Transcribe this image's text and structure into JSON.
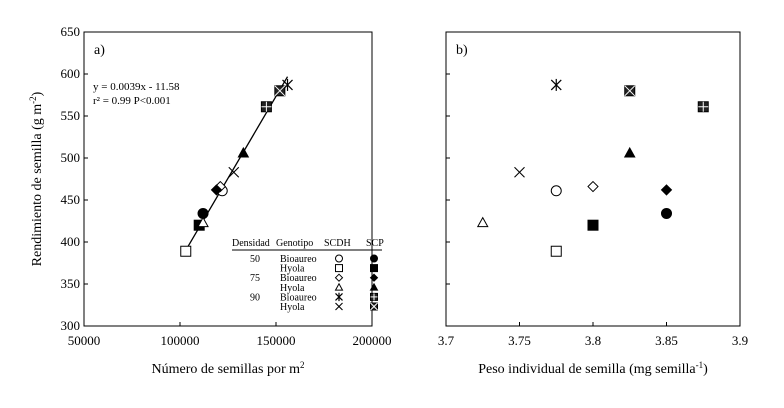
{
  "chart_data": [
    {
      "type": "scatter",
      "panel_label": "a)",
      "xlabel": "Número de semillas por m",
      "xlabel_sup": "2",
      "ylabel": "Rendimiento de semilla (g m",
      "ylabel_sup": "-2",
      "ylabel_end": ")",
      "xlim": [
        50000,
        200000
      ],
      "ylim": [
        300,
        650
      ],
      "xticks": [
        50000,
        100000,
        150000,
        200000
      ],
      "xtick_labels": [
        "50000",
        "100000",
        "150000",
        "200000"
      ],
      "yticks": [
        300,
        350,
        400,
        450,
        500,
        550,
        600,
        650
      ],
      "ytick_labels": [
        "300",
        "350",
        "400",
        "450",
        "500",
        "550",
        "600",
        "650"
      ],
      "grid": false,
      "series": [
        {
          "marker": "open-circle",
          "points": [
            [
              122000,
              461
            ]
          ]
        },
        {
          "marker": "filled-circle",
          "points": [
            [
              112000,
              434
            ]
          ]
        },
        {
          "marker": "open-square",
          "points": [
            [
              103000,
              389
            ]
          ]
        },
        {
          "marker": "filled-square",
          "points": [
            [
              110000,
              420
            ]
          ]
        },
        {
          "marker": "open-diamond",
          "points": [
            [
              121000,
              466
            ]
          ]
        },
        {
          "marker": "filled-diamond",
          "points": [
            [
              119000,
              462
            ]
          ]
        },
        {
          "marker": "open-triangle",
          "points": [
            [
              112000,
              423
            ]
          ]
        },
        {
          "marker": "filled-triangle",
          "points": [
            [
              133000,
              506
            ]
          ]
        },
        {
          "marker": "asterisk",
          "points": [
            [
              156000,
              587
            ]
          ]
        },
        {
          "marker": "hatched-square",
          "points": [
            [
              145000,
              561
            ]
          ]
        },
        {
          "marker": "cross",
          "points": [
            [
              128000,
              483
            ]
          ]
        },
        {
          "marker": "crossed-square",
          "points": [
            [
              152000,
              580
            ]
          ]
        }
      ],
      "regression": {
        "slope": 0.0039,
        "intercept": -11.58,
        "x_range": [
          103000,
          156000
        ],
        "equation_text": "y = 0.0039x - 11.58",
        "r2_text": "r² = 0.99  P<0.001"
      },
      "legend": {
        "position": "bottom-right",
        "headers": [
          "Densidad",
          "Genotipo",
          "SCDH",
          "SCP"
        ],
        "rows": [
          {
            "densidad": "50",
            "genotipo": "Bioaureo",
            "scdh": "open-circle",
            "scp": "filled-circle"
          },
          {
            "densidad": "",
            "genotipo": "Hyola",
            "scdh": "open-square",
            "scp": "filled-square"
          },
          {
            "densidad": "75",
            "genotipo": "Bioaureo",
            "scdh": "open-diamond",
            "scp": "filled-diamond"
          },
          {
            "densidad": "",
            "genotipo": "Hyola",
            "scdh": "open-triangle",
            "scp": "filled-triangle"
          },
          {
            "densidad": "90",
            "genotipo": "Bioaureo",
            "scdh": "asterisk",
            "scp": "hatched-square"
          },
          {
            "densidad": "",
            "genotipo": "Hyola",
            "scdh": "cross",
            "scp": "crossed-square"
          }
        ]
      }
    },
    {
      "type": "scatter",
      "panel_label": "b)",
      "xlabel": "Peso individual de semilla (mg semilla",
      "xlabel_sup": "-1",
      "xlabel_end": ")",
      "xlim": [
        3.7,
        3.9
      ],
      "ylim": [
        300,
        650
      ],
      "xticks": [
        3.7,
        3.75,
        3.8,
        3.85,
        3.9
      ],
      "xtick_labels": [
        "3.7",
        "3.75",
        "3.8",
        "3.85",
        "3.9"
      ],
      "yticks": [
        300,
        350,
        400,
        450,
        500,
        550,
        600,
        650
      ],
      "grid": false,
      "series": [
        {
          "marker": "open-circle",
          "points": [
            [
              3.775,
              461
            ]
          ]
        },
        {
          "marker": "filled-circle",
          "points": [
            [
              3.85,
              434
            ]
          ]
        },
        {
          "marker": "open-square",
          "points": [
            [
              3.775,
              389
            ]
          ]
        },
        {
          "marker": "filled-square",
          "points": [
            [
              3.8,
              420
            ]
          ]
        },
        {
          "marker": "open-diamond",
          "points": [
            [
              3.8,
              466
            ]
          ]
        },
        {
          "marker": "filled-diamond",
          "points": [
            [
              3.85,
              462
            ]
          ]
        },
        {
          "marker": "open-triangle",
          "points": [
            [
              3.725,
              423
            ]
          ]
        },
        {
          "marker": "filled-triangle",
          "points": [
            [
              3.825,
              506
            ]
          ]
        },
        {
          "marker": "asterisk",
          "points": [
            [
              3.775,
              587
            ]
          ]
        },
        {
          "marker": "hatched-square",
          "points": [
            [
              3.875,
              561
            ]
          ]
        },
        {
          "marker": "cross",
          "points": [
            [
              3.75,
              483
            ]
          ]
        },
        {
          "marker": "crossed-square",
          "points": [
            [
              3.825,
              580
            ]
          ]
        }
      ]
    }
  ]
}
